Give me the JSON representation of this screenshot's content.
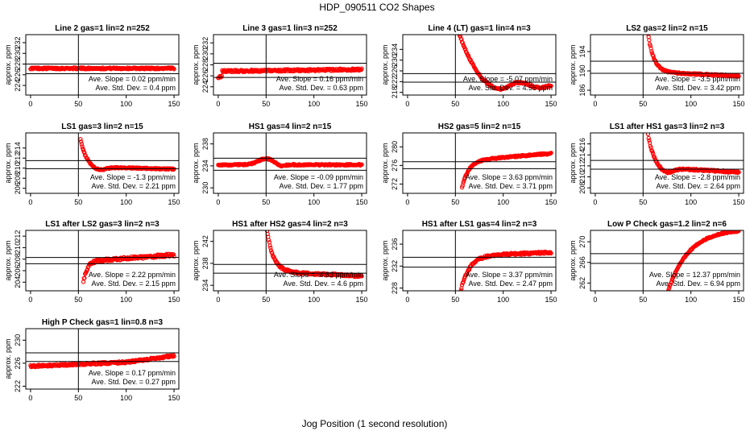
{
  "figure": {
    "title": "HDP_090511  CO2 Shapes",
    "xlabel": "Jog Position (1 second resolution)",
    "ylabel": "approx. ppm",
    "slope_label": "Ave. Slope = ",
    "slope_unit": " ppm/min",
    "sd_label": "Ave. Std. Dev. = ",
    "sd_unit": " ppm",
    "point_color": "#ff0000",
    "line_color": "#000000"
  },
  "chart_data": [
    {
      "type": "scatter",
      "title": "Line 2 gas=1 lin=2 n=252",
      "xlim": [
        -5,
        155
      ],
      "ylim": [
        222.2,
        233.5
      ],
      "yticks": [
        224,
        226,
        228,
        230,
        232
      ],
      "xticks": [
        0,
        50,
        100,
        150
      ],
      "vline": 50,
      "hlines": [
        228.0,
        226.2
      ],
      "slope": "0.02",
      "sd": "0.4",
      "shape": "flat",
      "params": {
        "level": 227.2,
        "slope": 0,
        "noise": 0.15
      }
    },
    {
      "type": "scatter",
      "title": "Line 3 gas=1 lin=3 n=252",
      "xlim": [
        -5,
        155
      ],
      "ylim": [
        222.5,
        233.5
      ],
      "yticks": [
        224,
        226,
        228,
        230,
        232
      ],
      "xticks": [
        0,
        50,
        100,
        150
      ],
      "vline": 50,
      "hlines": [
        228.3,
        225.7
      ],
      "slope": "0.16",
      "sd": "0.63",
      "shape": "flat",
      "params": {
        "level": 227.0,
        "startDip": 225.8,
        "slope": 0.002,
        "noise": 0.2
      }
    },
    {
      "type": "scatter",
      "title": "Line 4 (LT) gas=1 lin=4 n=3",
      "xlim": [
        -5,
        155
      ],
      "ylim": [
        217,
        239.5
      ],
      "yticks": [
        218,
        222,
        226,
        230,
        234
      ],
      "xticks": [
        0,
        50,
        100,
        150
      ],
      "vline": 50,
      "hlines": [
        225.0,
        221.8
      ],
      "slope": "-5.07",
      "sd": "4.55",
      "shape": "dip",
      "params": {
        "start": 50,
        "high": 244,
        "low": 219.2,
        "min_at": 100,
        "end": 221,
        "noise": 0.35
      }
    },
    {
      "type": "scatter",
      "title": "LS2 gas=2 lin=2 n=15",
      "xlim": [
        -5,
        155
      ],
      "ylim": [
        185,
        197.5
      ],
      "yticks": [
        186,
        190,
        194
      ],
      "xticks": [
        0,
        50,
        100,
        150
      ],
      "vline": 50,
      "hlines": [
        192.0,
        189.5
      ],
      "slope": "-3.5",
      "sd": "3.42",
      "shape": "decay",
      "params": {
        "start": 55,
        "high": 198,
        "level": 189.8,
        "tau": 6,
        "slope": -0.009,
        "noise": 0.15
      }
    },
    {
      "type": "scatter",
      "title": "LS1 gas=3 lin=2 n=15",
      "xlim": [
        -5,
        155
      ],
      "ylim": [
        205,
        217
      ],
      "yticks": [
        206,
        208,
        210,
        212,
        214
      ],
      "xticks": [
        0,
        50,
        100,
        150
      ],
      "vline": 50,
      "hlines": [
        211.5,
        209.9
      ],
      "slope": "-1.3",
      "sd": "2.21",
      "shape": "decay",
      "params": {
        "start": 52,
        "high": 216,
        "level": 210.3,
        "tau": 6,
        "slope": -0.005,
        "noise": 0.12,
        "undershoot": 209.6
      }
    },
    {
      "type": "scatter",
      "title": "HS1 gas=4 lin=2 n=15",
      "xlim": [
        -5,
        155
      ],
      "ylim": [
        229,
        240
      ],
      "yticks": [
        230,
        234,
        238
      ],
      "xticks": [
        0,
        50,
        100,
        150
      ],
      "vline": 50,
      "hlines": [
        235.4,
        233.2
      ],
      "slope": "-0.09",
      "sd": "1.77",
      "shape": "bump",
      "params": {
        "level": 234.2,
        "peak": 235.3,
        "peak_at": 50,
        "dip": 233.8,
        "dip_at": 65,
        "noise": 0.12
      }
    },
    {
      "type": "scatter",
      "title": "HS2 gas=5 lin=2 n=15",
      "xlim": [
        -5,
        155
      ],
      "ylim": [
        270,
        283
      ],
      "yticks": [
        272,
        276,
        280
      ],
      "xticks": [
        0,
        50,
        100,
        150
      ],
      "vline": 50,
      "hlines": [
        276.8,
        275.3
      ],
      "slope": "3.63",
      "sd": "3.71",
      "shape": "rise",
      "params": {
        "start": 57,
        "low": 271.3,
        "level": 277.0,
        "tau": 7,
        "slope": 0.017,
        "noise": 0.15
      }
    },
    {
      "type": "scatter",
      "title": "LS1 after HS1 gas=3 lin=2 n=3",
      "xlim": [
        -5,
        155
      ],
      "ylim": [
        207,
        218
      ],
      "yticks": [
        208,
        210,
        212,
        214,
        216
      ],
      "xticks": [
        0,
        50,
        100,
        150
      ],
      "vline": 50,
      "hlines": [
        213.0,
        211.4
      ],
      "slope": "-2.8",
      "sd": "2.64",
      "shape": "decay",
      "params": {
        "start": 55,
        "high": 218,
        "level": 211.8,
        "tau": 6,
        "slope": -0.01,
        "noise": 0.15,
        "undershoot": 210.8
      }
    },
    {
      "type": "scatter",
      "title": "LS1 after LS2 gas=3 lin=2 n=3",
      "xlim": [
        -5,
        155
      ],
      "ylim": [
        202.5,
        213
      ],
      "yticks": [
        204,
        206,
        208,
        210,
        212
      ],
      "xticks": [
        0,
        50,
        100,
        150
      ],
      "vline": 50,
      "hlines": [
        208.3,
        207.2
      ],
      "slope": "2.22",
      "sd": "2.15",
      "shape": "rise",
      "params": {
        "start": 55,
        "low": 203.8,
        "level": 207.6,
        "tau": 4,
        "slope": 0.012,
        "noise": 0.25
      }
    },
    {
      "type": "scatter",
      "title": "HS1 after HS2 gas=4 lin=2 n=3",
      "xlim": [
        -5,
        155
      ],
      "ylim": [
        233,
        244
      ],
      "yticks": [
        234,
        238,
        242
      ],
      "xticks": [
        0,
        50,
        100,
        150
      ],
      "vline": 50,
      "hlines": [
        237.8,
        236.2
      ],
      "slope": "-4.63",
      "sd": "4.6",
      "shape": "decay",
      "params": {
        "start": 50,
        "high": 245,
        "level": 236.5,
        "tau": 7,
        "slope": -0.008,
        "noise": 0.2
      }
    },
    {
      "type": "scatter",
      "title": "HS1 after LS1 gas=4 lin=2 n=3",
      "xlim": [
        -5,
        155
      ],
      "ylim": [
        227.5,
        238.5
      ],
      "yticks": [
        228,
        232,
        236
      ],
      "xticks": [
        0,
        50,
        100,
        150
      ],
      "vline": 50,
      "hlines": [
        233.6,
        231.8
      ],
      "slope": "3.37",
      "sd": "2.47",
      "shape": "rise",
      "params": {
        "start": 55,
        "low": 227,
        "level": 233.9,
        "tau": 9,
        "slope": 0.006,
        "noise": 0.2
      }
    },
    {
      "type": "scatter",
      "title": "Low P Check gas=1.2 lin=2 n=6",
      "xlim": [
        -5,
        155
      ],
      "ylim": [
        260.5,
        272.2
      ],
      "yticks": [
        262,
        266,
        270
      ],
      "xticks": [
        0,
        50,
        100,
        150
      ],
      "vline": 50,
      "hlines": [
        267.7,
        265.8
      ],
      "slope": "12.37",
      "sd": "6.94",
      "shape": "rise",
      "params": {
        "start": 72,
        "low": 258,
        "level": 272.5,
        "tau": 22,
        "slope": 0,
        "noise": 0.12
      }
    },
    {
      "type": "scatter",
      "title": "High P Check gas=1 lin=0.8 n=3",
      "xlim": [
        -5,
        155
      ],
      "ylim": [
        221.5,
        232
      ],
      "yticks": [
        222,
        226,
        230
      ],
      "xticks": [
        0,
        50,
        100,
        150
      ],
      "vline": 50,
      "hlines": [
        227.8,
        226.3
      ],
      "slope": "0.17",
      "sd": "0.27",
      "shape": "flat",
      "params": {
        "level": 226.0,
        "slope": 0.007,
        "noise": 0.18,
        "end": 227.3
      }
    }
  ]
}
